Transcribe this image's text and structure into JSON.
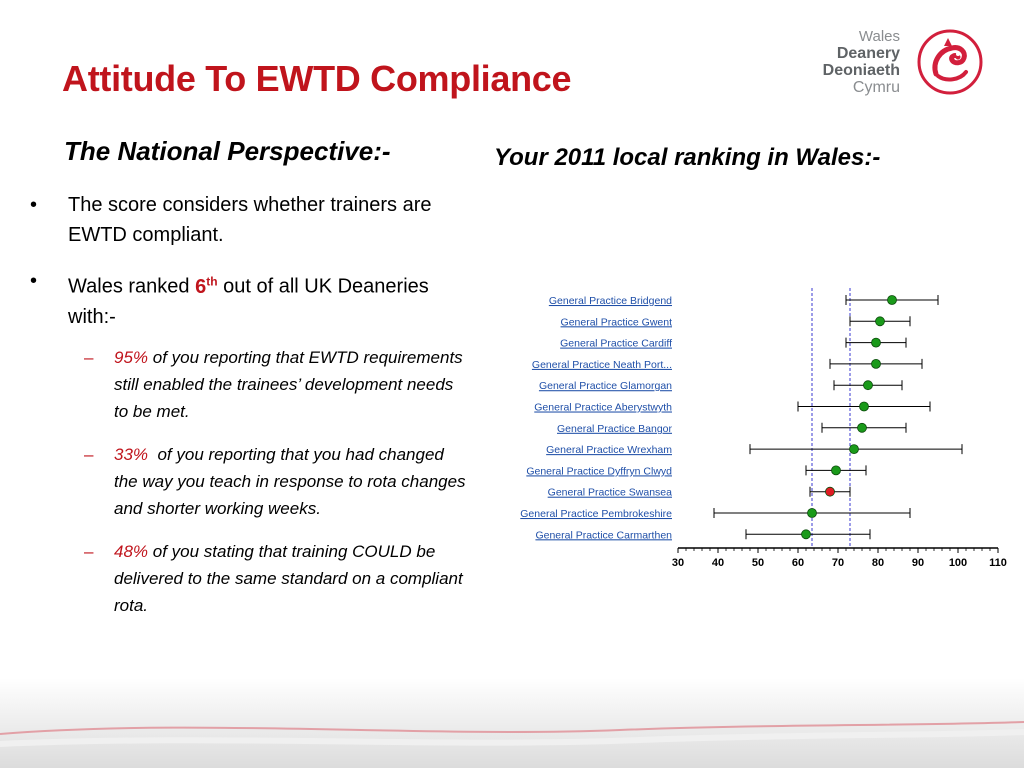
{
  "title": "Attitude To EWTD Compliance",
  "logo": {
    "line1": "Wales",
    "line2": "Deanery",
    "line3": "Deoniaeth",
    "line4": "Cymru"
  },
  "left_heading": "The National Perspective:-",
  "right_heading": "Your 2011 local ranking in Wales:-",
  "bullets": [
    {
      "text": "The score considers whether trainers are EWTD compliant."
    },
    {
      "pre": "Wales ranked ",
      "rank": "6",
      "rank_sup": "th",
      "post": " out of all UK Deaneries with:-"
    }
  ],
  "sub_bullets": [
    {
      "pct": "95%",
      "text": " of you reporting that EWTD requirements still enabled the trainees’ development needs to be met."
    },
    {
      "pct": "33%",
      "text": "  of you reporting that you had changed the way you teach in response to rota changes and shorter working weeks."
    },
    {
      "pct": "48%",
      "text": " of you stating that training COULD be delivered to the same standard on a compliant rota."
    }
  ],
  "chart_data": {
    "type": "scatter",
    "categories": [
      "General Practice Bridgend",
      "General Practice Gwent",
      "General Practice Cardiff",
      "General Practice Neath Port...",
      "General Practice Glamorgan",
      "General Practice Aberystwyth",
      "General Practice Bangor",
      "General Practice Wrexham",
      "General Practice Dyffryn Clwyd",
      "General Practice Swansea",
      "General Practice Pembrokeshire",
      "General Practice Carmarthen"
    ],
    "values": [
      83.5,
      80.5,
      79.5,
      79.5,
      77.5,
      76.5,
      76,
      74,
      69.5,
      68,
      63.5,
      62
    ],
    "low": [
      72,
      73,
      72,
      68,
      69,
      60,
      66,
      48,
      62,
      63,
      39,
      47
    ],
    "high": [
      95,
      88,
      87,
      91,
      86,
      93,
      87,
      101,
      77,
      73,
      88,
      78
    ],
    "highlight": [
      false,
      false,
      false,
      false,
      false,
      false,
      false,
      false,
      false,
      true,
      false,
      false
    ],
    "reference_lines": [
      63.5,
      73
    ],
    "xlim": [
      30,
      110
    ],
    "xticks": [
      30,
      40,
      50,
      60,
      70,
      80,
      90,
      100,
      110
    ],
    "colors": {
      "point": "#1a9a1a",
      "highlight": "#e01c24",
      "label": "#1f4fa8",
      "ref_line": "#3a3ad0"
    }
  }
}
